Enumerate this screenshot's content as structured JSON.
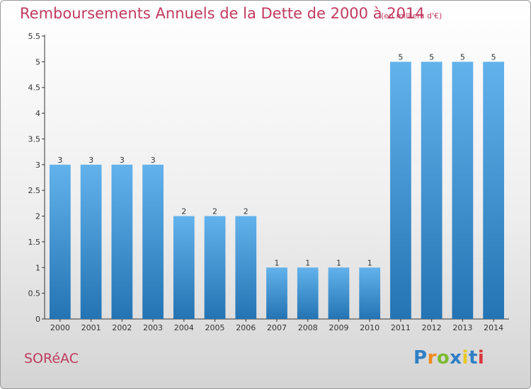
{
  "title": "Remboursements Annuels de la Dette de 2000 à 2014",
  "subtitle": "(en milliers d'€)",
  "commune": "SORéAC",
  "logo": {
    "text": "Proxiti",
    "letters": [
      "P",
      "r",
      "o",
      "x",
      "i",
      "t",
      "i"
    ],
    "colors": [
      "#2f7fc4",
      "#f08a1c",
      "#7cba2f",
      "#2f7fc4",
      "#e8c81e",
      "#2f7fc4",
      "#d9373b"
    ]
  },
  "colors": {
    "title": "#c03a5e",
    "bar_light": "#62b2ec",
    "bar_dark": "#2474b4"
  },
  "chart_data": {
    "type": "bar",
    "categories": [
      "2000",
      "2001",
      "2002",
      "2003",
      "2004",
      "2005",
      "2006",
      "2007",
      "2008",
      "2009",
      "2010",
      "2011",
      "2012",
      "2013",
      "2014"
    ],
    "values": [
      3,
      3,
      3,
      3,
      2,
      2,
      2,
      1,
      1,
      1,
      1,
      5,
      5,
      5,
      5
    ],
    "ylim": [
      0,
      5.5
    ],
    "yticks": [
      "0",
      "0.5",
      "1",
      "1.5",
      "2",
      "2.5",
      "3",
      "3.5",
      "4",
      "4.5",
      "5",
      "5.5"
    ],
    "grid": false
  }
}
